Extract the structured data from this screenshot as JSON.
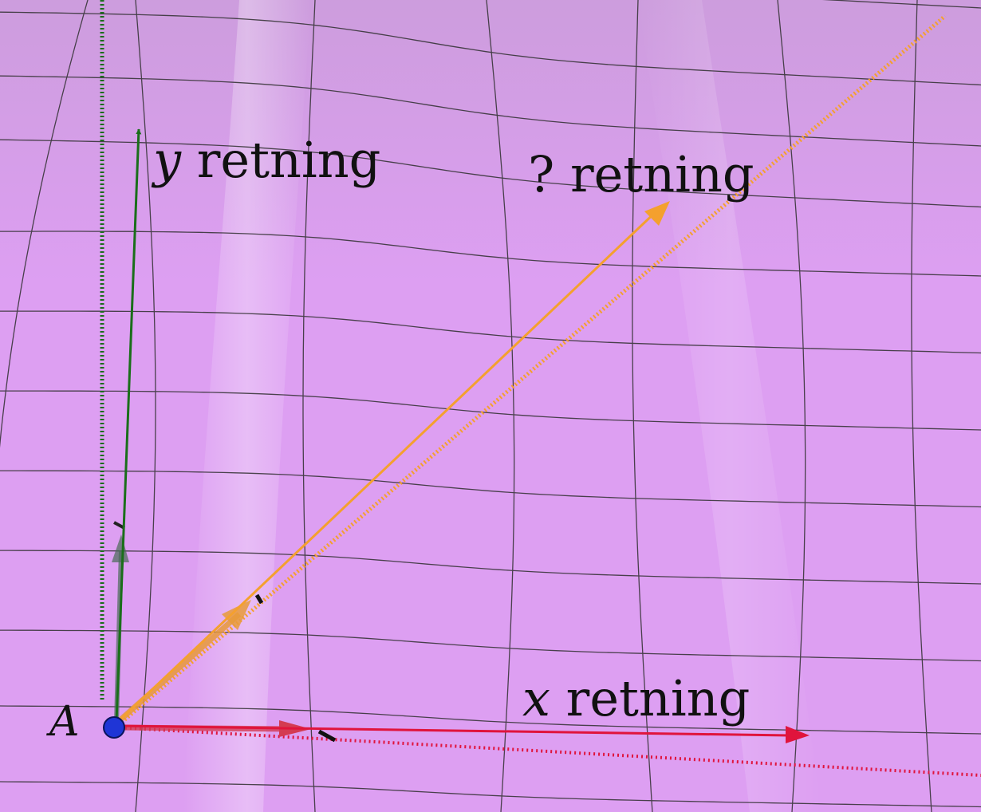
{
  "labels": {
    "point": "A",
    "y_var": "y",
    "y_word": " retning",
    "x_var": "x",
    "x_word": " retning",
    "unknown": "? retning"
  },
  "colors": {
    "surface": "#dd9ff2",
    "surface_highlight": "#eeb8fc",
    "surface_shade": "#c99ad8",
    "grid": "#2f2f2f",
    "y_direction": "#1a6e1a",
    "x_direction": "#e0143c",
    "unknown_direction": "#f4a02e",
    "point": "#1f35d6"
  },
  "icons": [
    "point-marker"
  ]
}
